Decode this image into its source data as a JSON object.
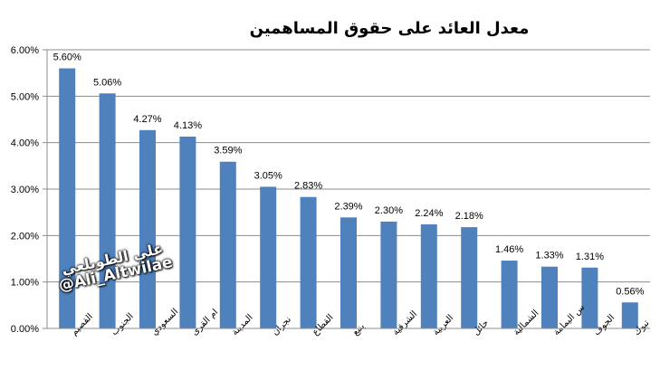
{
  "chart_data": {
    "type": "bar",
    "title": "معدل العائد على حقوق المساهمين",
    "xlabel": "",
    "ylabel": "",
    "ylim": [
      0,
      6
    ],
    "yticks": [
      "0.00%",
      "1.00%",
      "2.00%",
      "3.00%",
      "4.00%",
      "5.00%",
      "6.00%"
    ],
    "ytick_values": [
      0,
      1,
      2,
      3,
      4,
      5,
      6
    ],
    "grid": true,
    "legend": "none",
    "bar_color": "#4f81bd",
    "categories": [
      "القصيم",
      "الجنوب",
      "السعودي",
      "ام القرى",
      "المدينة",
      "نجران",
      "القطاع",
      "ينبع",
      "الشرقية",
      "العربية",
      "حائل",
      "الشمالية",
      "س اليمامة",
      "الجوف",
      "تبوك"
    ],
    "values": [
      5.6,
      5.06,
      4.27,
      4.13,
      3.59,
      3.05,
      2.83,
      2.39,
      2.3,
      2.24,
      2.18,
      1.46,
      1.33,
      1.31,
      0.56
    ],
    "data_labels": [
      "5.60%",
      "5.06%",
      "4.27%",
      "4.13%",
      "3.59%",
      "3.05%",
      "2.83%",
      "2.39%",
      "2.30%",
      "2.24%",
      "2.18%",
      "1.46%",
      "1.33%",
      "1.31%",
      "0.56%"
    ]
  },
  "watermark": {
    "name": "علي الطويلعي",
    "handle": "@Ali_Altwilae"
  }
}
